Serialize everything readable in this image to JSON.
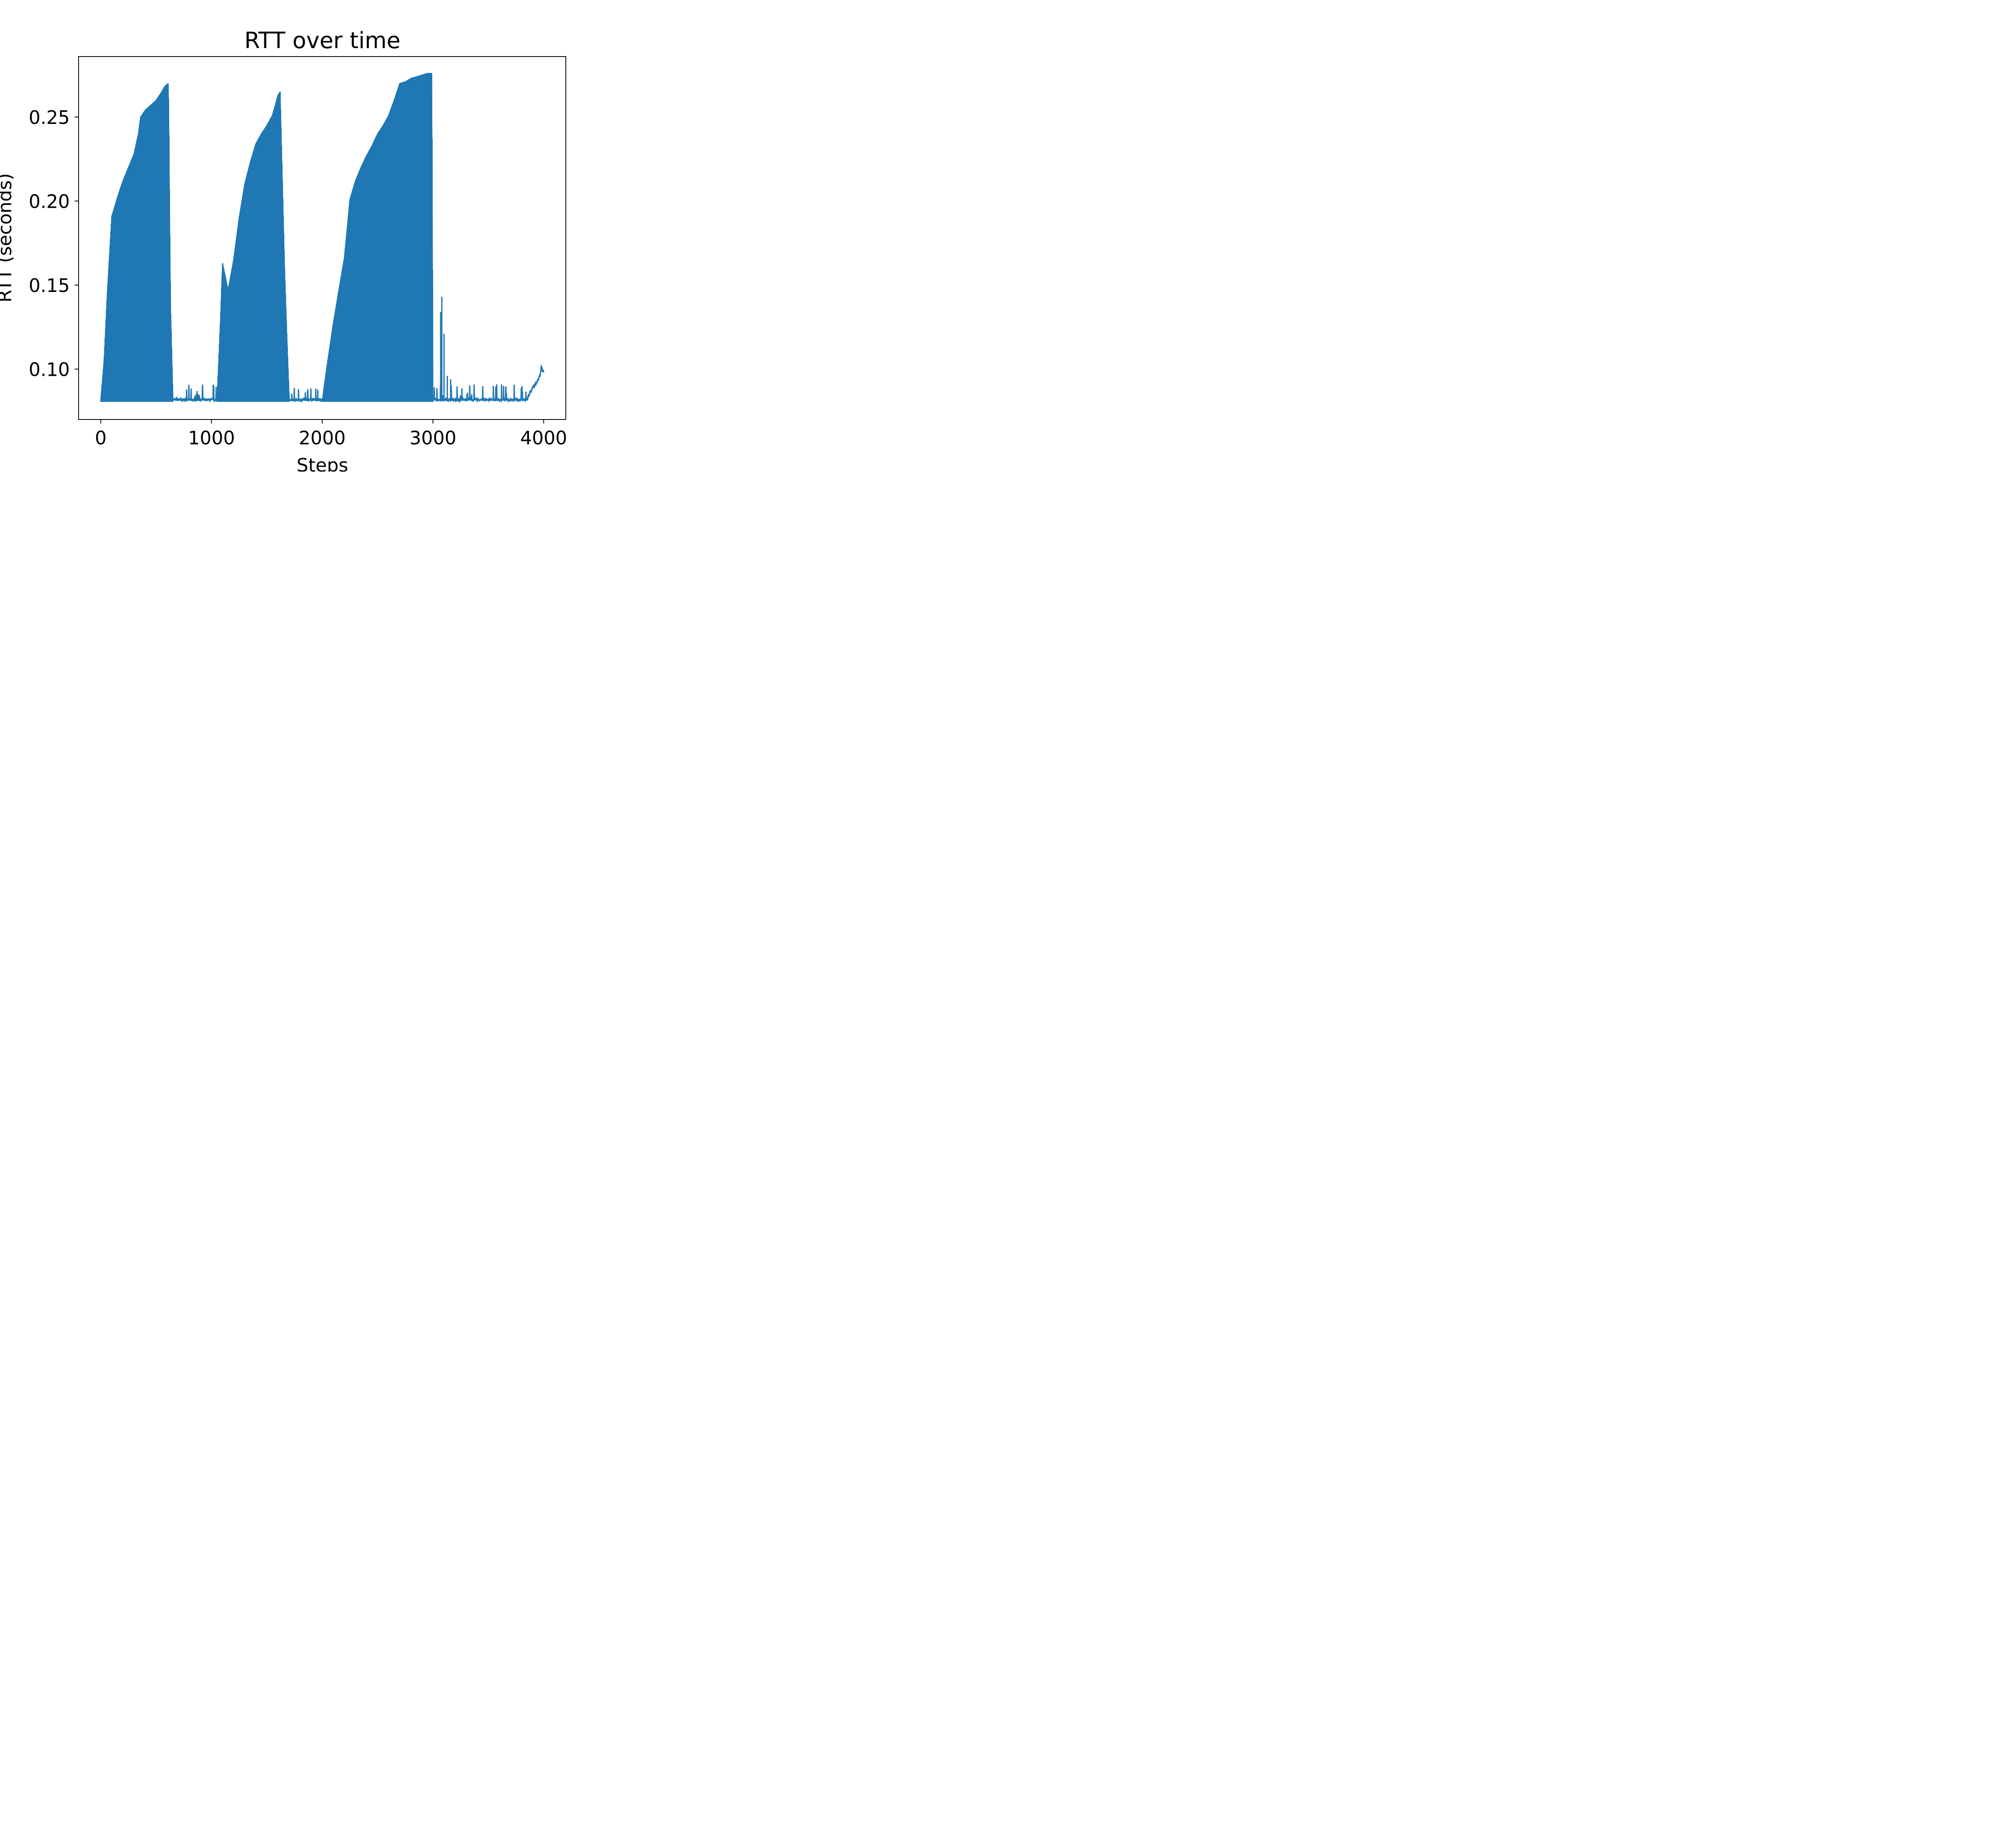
{
  "chart_data": {
    "type": "line",
    "title": "RTT over time",
    "xlabel": "Steps",
    "ylabel": "RTT (seconds)",
    "xlim": [
      -200,
      4200
    ],
    "ylim": [
      0.07,
      0.286
    ],
    "x_ticks": [
      0,
      1000,
      2000,
      3000,
      4000
    ],
    "x_tick_labels": [
      "0",
      "1000",
      "2000",
      "3000",
      "4000"
    ],
    "y_ticks": [
      0.1,
      0.15,
      0.2,
      0.25
    ],
    "y_tick_labels": [
      "0.10",
      "0.15",
      "0.20",
      "0.25"
    ],
    "grid": false,
    "series": [
      {
        "color": "#1f77b4",
        "baseline": 0.081,
        "high_oscillation_envelopes": [
          {
            "x": [
              0,
              30,
              60,
              100,
              150,
              200,
              250,
              300,
              340,
              360,
              400,
              450,
              500,
              550,
              575,
              590,
              610,
              615,
              620,
              630,
              650
            ],
            "y": [
              0.081,
              0.105,
              0.146,
              0.191,
              0.202,
              0.212,
              0.22,
              0.228,
              0.24,
              0.25,
              0.254,
              0.257,
              0.26,
              0.265,
              0.268,
              0.269,
              0.27,
              0.247,
              0.207,
              0.138,
              0.086
            ]
          },
          {
            "x": [
              1050,
              1080,
              1100,
              1150,
              1200,
              1250,
              1300,
              1350,
              1400,
              1450,
              1500,
              1550,
              1580,
              1600,
              1620,
              1640,
              1660,
              1680,
              1700
            ],
            "y": [
              0.081,
              0.127,
              0.163,
              0.147,
              0.165,
              0.19,
              0.21,
              0.223,
              0.234,
              0.24,
              0.245,
              0.251,
              0.258,
              0.263,
              0.265,
              0.212,
              0.16,
              0.121,
              0.086
            ]
          },
          {
            "x": [
              2000,
              2050,
              2100,
              2150,
              2200,
              2250,
              2300,
              2350,
              2400,
              2450,
              2500,
              2550,
              2600,
              2650,
              2700,
              2750,
              2800,
              2850,
              2900,
              2950,
              2990,
              3000
            ],
            "y": [
              0.081,
              0.105,
              0.127,
              0.147,
              0.166,
              0.201,
              0.212,
              0.22,
              0.227,
              0.233,
              0.24,
              0.245,
              0.251,
              0.26,
              0.27,
              0.271,
              0.273,
              0.274,
              0.275,
              0.276,
              0.276,
              0.081
            ]
          }
        ],
        "spikes": [
          {
            "x": 3070,
            "y": 0.134
          },
          {
            "x": 3080,
            "y": 0.143
          },
          {
            "x": 3100,
            "y": 0.121
          },
          {
            "x": 3130,
            "y": 0.096
          },
          {
            "x": 3160,
            "y": 0.094
          }
        ],
        "tail": {
          "x": [
            3850,
            3900,
            3930,
            3950,
            3970,
            3980,
            3990,
            4000
          ],
          "y": [
            0.082,
            0.089,
            0.091,
            0.094,
            0.096,
            0.102,
            0.098,
            0.099
          ]
        }
      }
    ]
  }
}
